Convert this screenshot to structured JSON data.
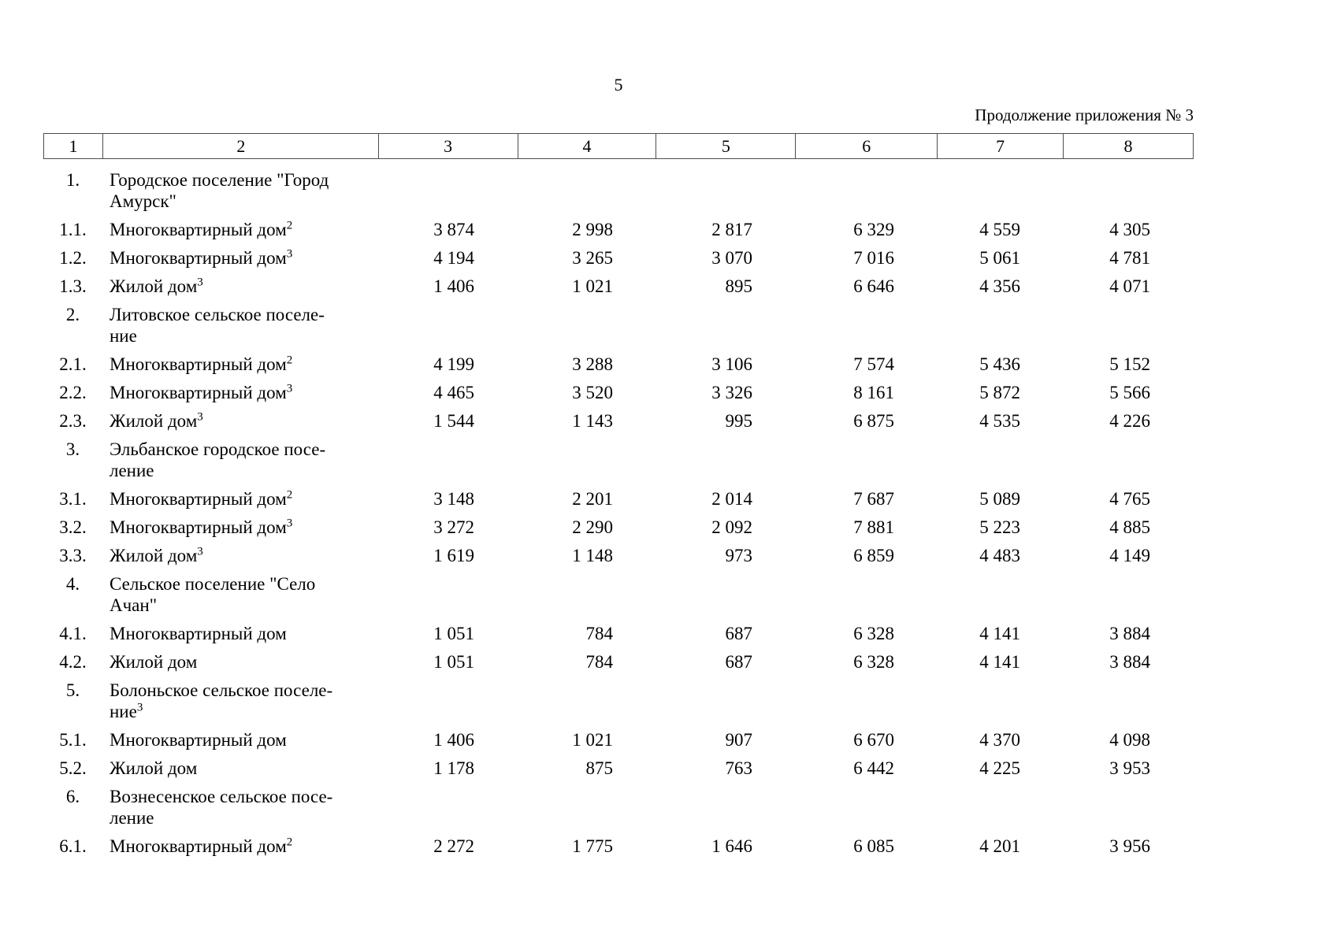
{
  "page": {
    "number": "5",
    "continuation_note": "Продолжение приложения № 3"
  },
  "table": {
    "header": [
      "1",
      "2",
      "3",
      "4",
      "5",
      "6",
      "7",
      "8"
    ],
    "rows": [
      {
        "num": "1.",
        "n1": "Городское поселение \"Город",
        "n2": "Амурск\""
      },
      {
        "num": "1.1.",
        "n1": "Многоквартирный дом",
        "s1": "2",
        "v3": "3 874",
        "v4": "2 998",
        "v5": "2 817",
        "v6": "6 329",
        "v7": "4 559",
        "v8": "4 305"
      },
      {
        "num": "1.2.",
        "n1": "Многоквартирный дом",
        "s1": "3",
        "v3": "4 194",
        "v4": "3 265",
        "v5": "3 070",
        "v6": "7 016",
        "v7": "5 061",
        "v8": "4 781"
      },
      {
        "num": "1.3.",
        "n1": "Жилой дом",
        "s1": "3",
        "v3": "1 406",
        "v4": "1 021",
        "v5": "895",
        "v6": "6 646",
        "v7": "4 356",
        "v8": "4 071"
      },
      {
        "num": "2.",
        "n1": "Литовское сельское поселе-",
        "n2": "ние"
      },
      {
        "num": "2.1.",
        "n1": "Многоквартирный дом",
        "s1": "2",
        "v3": "4 199",
        "v4": "3 288",
        "v5": "3 106",
        "v6": "7 574",
        "v7": "5 436",
        "v8": "5 152"
      },
      {
        "num": "2.2.",
        "n1": "Многоквартирный дом",
        "s1": "3",
        "v3": "4 465",
        "v4": "3 520",
        "v5": "3 326",
        "v6": "8 161",
        "v7": "5 872",
        "v8": "5 566"
      },
      {
        "num": "2.3.",
        "n1": "Жилой дом",
        "s1": "3",
        "v3": "1 544",
        "v4": "1 143",
        "v5": "995",
        "v6": "6 875",
        "v7": "4 535",
        "v8": "4 226"
      },
      {
        "num": "3.",
        "n1": "Эльбанское городское посе-",
        "n2": "ление"
      },
      {
        "num": "3.1.",
        "n1": "Многоквартирный дом",
        "s1": "2",
        "v3": "3 148",
        "v4": "2 201",
        "v5": "2 014",
        "v6": "7 687",
        "v7": "5 089",
        "v8": "4 765"
      },
      {
        "num": "3.2.",
        "n1": "Многоквартирный дом",
        "s1": "3",
        "v3": "3 272",
        "v4": "2 290",
        "v5": "2 092",
        "v6": "7 881",
        "v7": "5 223",
        "v8": "4 885"
      },
      {
        "num": "3.3.",
        "n1": "Жилой дом",
        "s1": "3",
        "v3": "1 619",
        "v4": "1 148",
        "v5": "973",
        "v6": "6 859",
        "v7": "4 483",
        "v8": "4 149"
      },
      {
        "num": "4.",
        "n1": "Сельское поселение \"Село",
        "n2": "Ачан\""
      },
      {
        "num": "4.1.",
        "n1": "Многоквартирный дом",
        "v3": "1 051",
        "v4": "784",
        "v5": "687",
        "v6": "6 328",
        "v7": "4 141",
        "v8": "3 884"
      },
      {
        "num": "4.2.",
        "n1": "Жилой дом",
        "v3": "1 051",
        "v4": "784",
        "v5": "687",
        "v6": "6 328",
        "v7": "4 141",
        "v8": "3 884"
      },
      {
        "num": "5.",
        "n1": "Болоньское сельское поселе-",
        "n2": "ние",
        "s2": "3"
      },
      {
        "num": "5.1.",
        "n1": "Многоквартирный дом",
        "v3": "1 406",
        "v4": "1 021",
        "v5": "907",
        "v6": "6 670",
        "v7": "4 370",
        "v8": "4 098"
      },
      {
        "num": "5.2.",
        "n1": "Жилой дом",
        "v3": "1 178",
        "v4": "875",
        "v5": "763",
        "v6": "6 442",
        "v7": "4 225",
        "v8": "3 953"
      },
      {
        "num": "6.",
        "n1": "Вознесенское сельское посе-",
        "n2": "ление"
      },
      {
        "num": "6.1.",
        "n1": "Многоквартирный дом",
        "s1": "2",
        "v3": "2 272",
        "v4": "1 775",
        "v5": "1 646",
        "v6": "6 085",
        "v7": "4 201",
        "v8": "3 956"
      }
    ]
  }
}
